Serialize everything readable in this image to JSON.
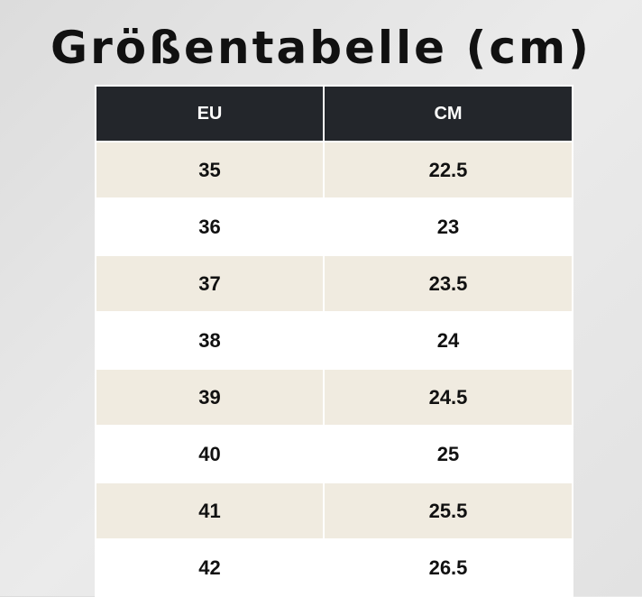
{
  "header": {
    "title": "Größentabelle (cm)"
  },
  "table": {
    "columns": [
      "EU",
      "CM"
    ],
    "rows": [
      [
        "35",
        "22.5"
      ],
      [
        "36",
        "23"
      ],
      [
        "37",
        "23.5"
      ],
      [
        "38",
        "24"
      ],
      [
        "39",
        "24.5"
      ],
      [
        "40",
        "25"
      ],
      [
        "41",
        "25.5"
      ],
      [
        "42",
        "26.5"
      ]
    ]
  }
}
